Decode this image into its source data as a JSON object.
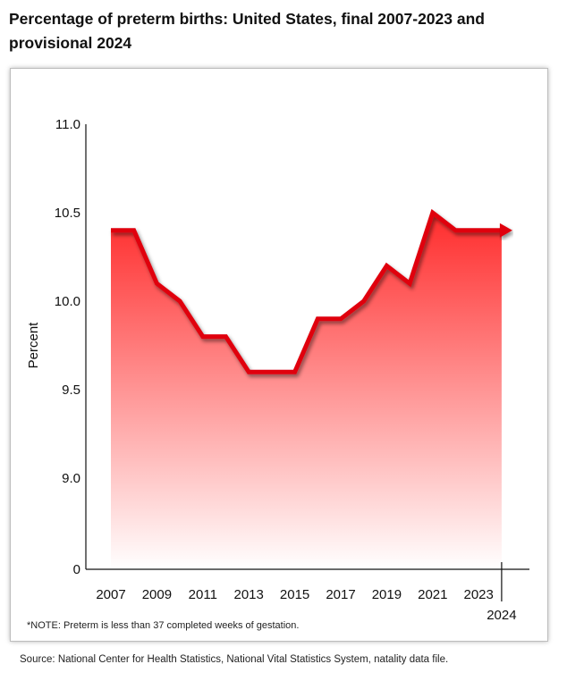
{
  "title": "Percentage of preterm births: United States, final 2007-2023 and provisional 2024",
  "note": "*NOTE: Preterm is less than 37 completed weeks of gestation.",
  "source": "Source: National Center for Health Statistics, National Vital Statistics System, natality data file.",
  "chart_data": {
    "type": "area",
    "ylabel": "Percent",
    "xlabel": "",
    "x": [
      2007,
      2008,
      2009,
      2010,
      2011,
      2012,
      2013,
      2014,
      2015,
      2016,
      2017,
      2018,
      2019,
      2020,
      2021,
      2022,
      2023,
      2024
    ],
    "values": [
      10.4,
      10.4,
      10.1,
      10.0,
      9.8,
      9.8,
      9.6,
      9.6,
      9.6,
      9.9,
      9.9,
      10.0,
      10.2,
      10.1,
      10.5,
      10.4,
      10.4,
      10.4
    ],
    "y_ticks": [
      "11.0",
      "10.5",
      "10.0",
      "9.5",
      "9.0",
      "0"
    ],
    "x_ticks": [
      "2007",
      "2009",
      "2011",
      "2013",
      "2015",
      "2017",
      "2019",
      "2021",
      "2023",
      "2024"
    ],
    "axis_break": "y-axis drops from 9.0 to 0",
    "line_color": "#e0000f",
    "fill_color_top": "#ff2b2b",
    "fill_color_bottom": "#ffffff",
    "provisional_year": 2024,
    "grid": false,
    "legend": "none"
  }
}
